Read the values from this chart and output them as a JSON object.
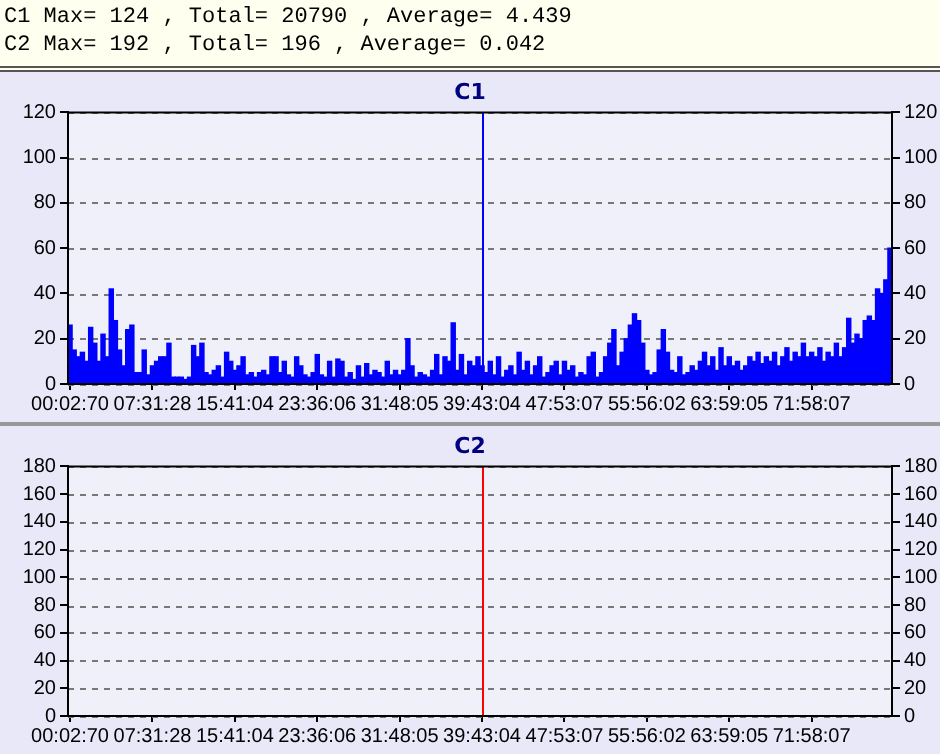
{
  "chart_data": [
    {
      "type": "bar",
      "title": "C1",
      "annotations": [
        "C1 Max= 124 , Total= 20790 , Average= 4.439"
      ],
      "categories": [
        "00:02:70",
        null,
        null,
        null,
        null,
        null,
        null,
        null,
        null,
        null,
        null,
        null,
        null,
        null,
        null,
        null,
        null,
        null,
        null,
        null,
        "07:31:28",
        null,
        null,
        null,
        null,
        null,
        null,
        null,
        null,
        null,
        null,
        null,
        null,
        null,
        null,
        null,
        null,
        null,
        null,
        null,
        "15:41:04",
        null,
        null,
        null,
        null,
        null,
        null,
        null,
        null,
        null,
        null,
        null,
        null,
        null,
        null,
        null,
        null,
        null,
        null,
        null,
        "23:36:06",
        null,
        null,
        null,
        null,
        null,
        null,
        null,
        null,
        null,
        null,
        null,
        null,
        null,
        null,
        null,
        null,
        null,
        null,
        null,
        "31:48:05",
        null,
        null,
        null,
        null,
        null,
        null,
        null,
        null,
        null,
        null,
        null,
        null,
        null,
        null,
        null,
        null,
        null,
        null,
        null,
        "39:43:04",
        null,
        null,
        null,
        null,
        null,
        null,
        null,
        null,
        null,
        null,
        null,
        null,
        null,
        null,
        null,
        null,
        null,
        null,
        null,
        "47:53:07",
        null,
        null,
        null,
        null,
        null,
        null,
        null,
        null,
        null,
        null,
        null,
        null,
        null,
        null,
        null,
        null,
        null,
        null,
        null,
        "55:56:02",
        null,
        null,
        null,
        null,
        null,
        null,
        null,
        null,
        null,
        null,
        null,
        null,
        null,
        null,
        null,
        null,
        null,
        null,
        null,
        "63:59:05",
        null,
        null,
        null,
        null,
        null,
        null,
        null,
        null,
        null,
        null,
        null,
        null,
        null,
        null,
        null,
        null,
        null,
        null,
        null,
        "71:58:07",
        null,
        null,
        null,
        null,
        null,
        null,
        null,
        null,
        null,
        null,
        null,
        null,
        null,
        null,
        null,
        null,
        null,
        null,
        null
      ],
      "values": [
        26,
        15,
        12,
        14,
        10,
        25,
        18,
        10,
        22,
        12,
        42,
        28,
        15,
        8,
        24,
        26,
        5,
        5,
        15,
        4,
        8,
        10,
        12,
        12,
        18,
        3,
        3,
        3,
        2,
        3,
        17,
        12,
        18,
        5,
        4,
        6,
        8,
        3,
        14,
        10,
        6,
        8,
        12,
        4,
        5,
        3,
        5,
        6,
        4,
        12,
        12,
        5,
        10,
        4,
        3,
        12,
        8,
        4,
        3,
        5,
        13,
        4,
        3,
        10,
        3,
        11,
        10,
        3,
        5,
        2,
        8,
        3,
        9,
        4,
        6,
        5,
        3,
        10,
        4,
        6,
        4,
        6,
        20,
        8,
        3,
        5,
        4,
        3,
        6,
        13,
        4,
        12,
        10,
        27,
        6,
        13,
        4,
        10,
        8,
        12,
        8,
        5,
        10,
        4,
        12,
        3,
        6,
        8,
        4,
        14,
        6,
        10,
        4,
        8,
        12,
        3,
        5,
        8,
        10,
        4,
        10,
        6,
        8,
        3,
        5,
        4,
        12,
        14,
        3,
        5,
        12,
        18,
        24,
        8,
        14,
        20,
        26,
        31,
        28,
        18,
        6,
        4,
        5,
        15,
        24,
        14,
        6,
        5,
        12,
        4,
        5,
        8,
        6,
        10,
        14,
        8,
        12,
        6,
        16,
        8,
        12,
        8,
        10,
        6,
        8,
        12,
        10,
        14,
        9,
        12,
        10,
        14,
        8,
        12,
        16,
        10,
        14,
        12,
        18,
        12,
        14,
        12,
        16,
        10,
        14,
        12,
        18,
        12,
        16,
        29,
        18,
        22,
        20,
        28,
        30,
        28,
        42,
        40,
        46,
        60
      ],
      "color": "#0000ff",
      "ylim": [
        0,
        120
      ],
      "yticks": [
        0,
        20,
        40,
        60,
        80,
        100,
        120
      ],
      "y2lim": [
        0,
        120
      ],
      "y2ticks": [
        0,
        20,
        40,
        60,
        80,
        100,
        120
      ],
      "grid": "y",
      "ref_lines": [
        {
          "axis": "x",
          "value": "39:43:04",
          "color": "#0000ff"
        }
      ]
    },
    {
      "type": "bar",
      "title": "C2",
      "annotations": [
        "C2 Max= 192 , Total= 196 , Average= 0.042"
      ],
      "categories": [
        "00:02:70",
        null,
        null,
        null,
        null,
        null,
        null,
        null,
        null,
        null,
        null,
        null,
        null,
        null,
        null,
        null,
        null,
        null,
        null,
        null,
        "07:31:28",
        null,
        null,
        null,
        null,
        null,
        null,
        null,
        null,
        null,
        null,
        null,
        null,
        null,
        null,
        null,
        null,
        null,
        null,
        null,
        "15:41:04",
        null,
        null,
        null,
        null,
        null,
        null,
        null,
        null,
        null,
        null,
        null,
        null,
        null,
        null,
        null,
        null,
        null,
        null,
        null,
        "23:36:06",
        null,
        null,
        null,
        null,
        null,
        null,
        null,
        null,
        null,
        null,
        null,
        null,
        null,
        null,
        null,
        null,
        null,
        null,
        null,
        "31:48:05",
        null,
        null,
        null,
        null,
        null,
        null,
        null,
        null,
        null,
        null,
        null,
        null,
        null,
        null,
        null,
        null,
        null,
        null,
        null,
        "39:43:04",
        null,
        null,
        null,
        null,
        null,
        null,
        null,
        null,
        null,
        null,
        null,
        null,
        null,
        null,
        null,
        null,
        null,
        null,
        null,
        "47:53:07",
        null,
        null,
        null,
        null,
        null,
        null,
        null,
        null,
        null,
        null,
        null,
        null,
        null,
        null,
        null,
        null,
        null,
        null,
        null,
        "55:56:02",
        null,
        null,
        null,
        null,
        null,
        null,
        null,
        null,
        null,
        null,
        null,
        null,
        null,
        null,
        null,
        null,
        null,
        null,
        null,
        "63:59:05",
        null,
        null,
        null,
        null,
        null,
        null,
        null,
        null,
        null,
        null,
        null,
        null,
        null,
        null,
        null,
        null,
        null,
        null,
        null,
        "71:58:07",
        null,
        null,
        null,
        null,
        null,
        null,
        null,
        null,
        null,
        null,
        null,
        null,
        null,
        null,
        null,
        null,
        null,
        null,
        null
      ],
      "values": [
        0,
        0,
        0,
        0,
        0,
        0,
        0,
        0,
        0,
        0,
        0,
        0,
        0,
        0,
        0,
        0,
        0,
        0,
        0,
        0,
        0,
        0,
        0,
        0,
        0,
        0,
        0,
        0,
        0,
        0,
        0,
        0,
        0,
        0,
        0,
        0,
        0,
        0,
        0,
        0,
        0,
        0,
        0,
        0,
        0,
        0,
        0,
        0,
        0,
        0,
        0,
        0,
        0,
        0,
        0,
        0,
        0,
        0,
        0,
        0,
        0,
        0,
        0,
        0,
        0,
        0,
        0,
        0,
        0,
        0,
        0,
        0,
        0,
        0,
        0,
        0,
        0,
        0,
        0,
        0,
        0,
        0,
        0,
        0,
        0,
        0,
        0,
        0,
        0,
        0,
        0,
        0,
        0,
        0,
        0,
        0,
        0,
        0,
        0,
        0,
        0,
        0,
        0,
        0,
        0,
        0,
        0,
        0,
        0,
        0,
        0,
        0,
        0,
        0,
        0,
        0,
        0,
        0,
        0,
        0,
        0,
        0,
        0,
        0,
        0,
        0,
        0,
        0,
        0,
        0,
        0,
        0,
        0,
        0,
        0,
        0,
        0,
        0,
        0,
        0,
        0,
        0,
        0,
        0,
        0,
        0,
        0,
        0,
        0,
        0,
        0,
        0,
        0,
        0,
        0,
        0,
        0,
        0,
        0,
        0,
        0,
        0,
        0,
        0,
        0,
        0,
        0,
        0,
        0,
        0,
        0,
        0,
        0,
        0,
        0,
        0,
        0,
        0,
        0,
        0,
        0,
        0,
        0,
        0,
        0,
        0,
        0,
        0,
        0,
        0,
        0,
        0,
        0,
        0,
        0,
        0,
        0,
        0,
        0,
        0
      ],
      "color": "#0000ff",
      "ylim": [
        0,
        180
      ],
      "yticks": [
        0,
        20,
        40,
        60,
        80,
        100,
        120,
        140,
        160,
        180
      ],
      "y2lim": [
        0,
        180
      ],
      "y2ticks": [
        0,
        20,
        40,
        60,
        80,
        100,
        120,
        140,
        160,
        180
      ],
      "grid": "y",
      "ref_lines": [
        {
          "axis": "x",
          "value": "39:43:04",
          "color": "#ff0000"
        }
      ]
    }
  ]
}
